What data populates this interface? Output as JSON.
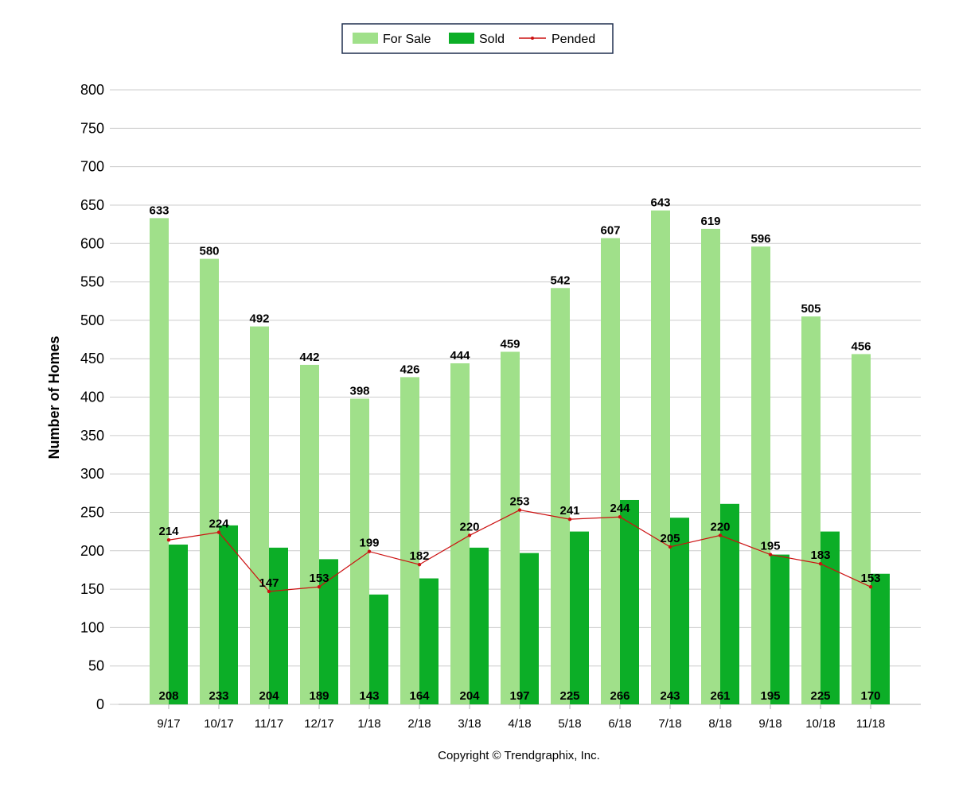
{
  "chart_data": {
    "type": "bar",
    "categories": [
      "9/17",
      "10/17",
      "11/17",
      "12/17",
      "1/18",
      "2/18",
      "3/18",
      "4/18",
      "5/18",
      "6/18",
      "7/18",
      "8/18",
      "9/18",
      "10/18",
      "11/18"
    ],
    "series": [
      {
        "name": "For Sale",
        "kind": "bar",
        "color": "#a0e08a",
        "values": [
          633,
          580,
          492,
          442,
          398,
          426,
          444,
          459,
          542,
          607,
          643,
          619,
          596,
          505,
          456
        ]
      },
      {
        "name": "Sold",
        "kind": "bar",
        "color": "#0cae27",
        "values": [
          208,
          233,
          204,
          189,
          143,
          164,
          204,
          197,
          225,
          266,
          243,
          261,
          195,
          225,
          170
        ]
      },
      {
        "name": "Pended",
        "kind": "line",
        "color": "#cc1111",
        "values": [
          214,
          224,
          147,
          153,
          199,
          182,
          220,
          253,
          241,
          244,
          205,
          220,
          195,
          183,
          153
        ]
      }
    ],
    "ylabel": "Number of Homes",
    "ylim": [
      0,
      800
    ],
    "yticks": [
      0,
      50,
      100,
      150,
      200,
      250,
      300,
      350,
      400,
      450,
      500,
      550,
      600,
      650,
      700,
      750,
      800
    ],
    "grid": true,
    "legend_placement": "top-center"
  },
  "footer": {
    "copyright": "Copyright © Trendgraphix, Inc."
  }
}
